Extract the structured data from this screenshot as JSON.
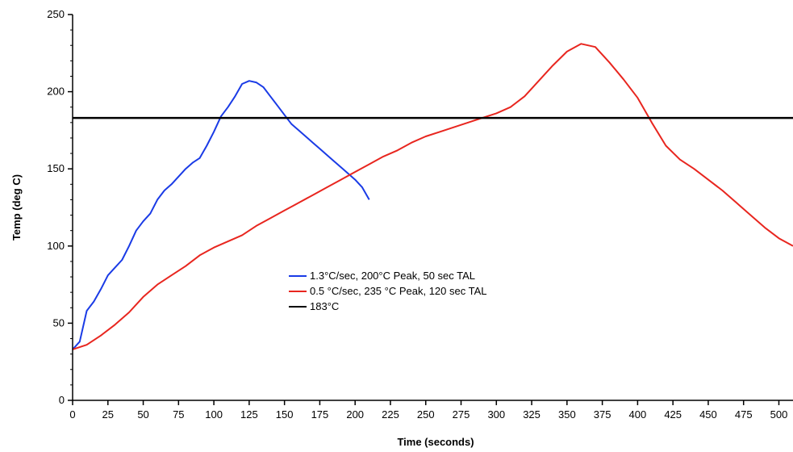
{
  "chart_data": {
    "type": "line",
    "xlabel": "Time (seconds)",
    "ylabel": "Temp (deg C)",
    "xlim": [
      0,
      510
    ],
    "ylim": [
      0,
      250
    ],
    "x_ticks": [
      0,
      25,
      50,
      75,
      100,
      125,
      150,
      175,
      200,
      225,
      250,
      275,
      300,
      325,
      350,
      375,
      400,
      425,
      450,
      475,
      500
    ],
    "y_ticks": [
      0,
      50,
      100,
      150,
      200,
      250
    ],
    "grid": false,
    "legend_position": "center",
    "series": [
      {
        "name": "1.3°C/sec, 200°C Peak, 50 sec TAL",
        "color": "#1a3be6",
        "x": [
          0,
          5,
          10,
          15,
          20,
          25,
          30,
          35,
          40,
          45,
          50,
          55,
          60,
          65,
          70,
          75,
          80,
          85,
          90,
          95,
          100,
          105,
          110,
          115,
          120,
          125,
          130,
          135,
          140,
          145,
          150,
          155,
          160,
          165,
          170,
          175,
          180,
          185,
          190,
          195,
          200,
          205,
          210
        ],
        "y": [
          33,
          38,
          58,
          64,
          72,
          81,
          86,
          91,
          100,
          110,
          116,
          121,
          130,
          136,
          140,
          145,
          150,
          154,
          157,
          165,
          174,
          184,
          190,
          197,
          205,
          207,
          206,
          203,
          197,
          191,
          185,
          179,
          175,
          171,
          167,
          163,
          159,
          155,
          151,
          147,
          143,
          138,
          130
        ]
      },
      {
        "name": "0.5 °C/sec, 235 °C Peak, 120 sec TAL",
        "color": "#e8261f",
        "x": [
          0,
          10,
          20,
          30,
          40,
          50,
          60,
          70,
          80,
          90,
          100,
          110,
          120,
          130,
          140,
          150,
          160,
          170,
          180,
          190,
          200,
          210,
          220,
          230,
          240,
          250,
          260,
          270,
          280,
          290,
          300,
          310,
          320,
          330,
          340,
          350,
          360,
          370,
          380,
          390,
          400,
          410,
          420,
          430,
          440,
          450,
          460,
          470,
          480,
          490,
          500,
          510
        ],
        "y": [
          33,
          36,
          42,
          49,
          57,
          67,
          75,
          81,
          87,
          94,
          99,
          103,
          107,
          113,
          118,
          123,
          128,
          133,
          138,
          143,
          148,
          153,
          158,
          162,
          167,
          171,
          174,
          177,
          180,
          183,
          186,
          190,
          197,
          207,
          217,
          226,
          231,
          229,
          219,
          208,
          196,
          180,
          165,
          156,
          150,
          143,
          136,
          128,
          120,
          112,
          105,
          100
        ]
      },
      {
        "name": "183°C",
        "color": "#000000",
        "x": [
          0,
          510
        ],
        "y": [
          183,
          183
        ]
      }
    ]
  }
}
